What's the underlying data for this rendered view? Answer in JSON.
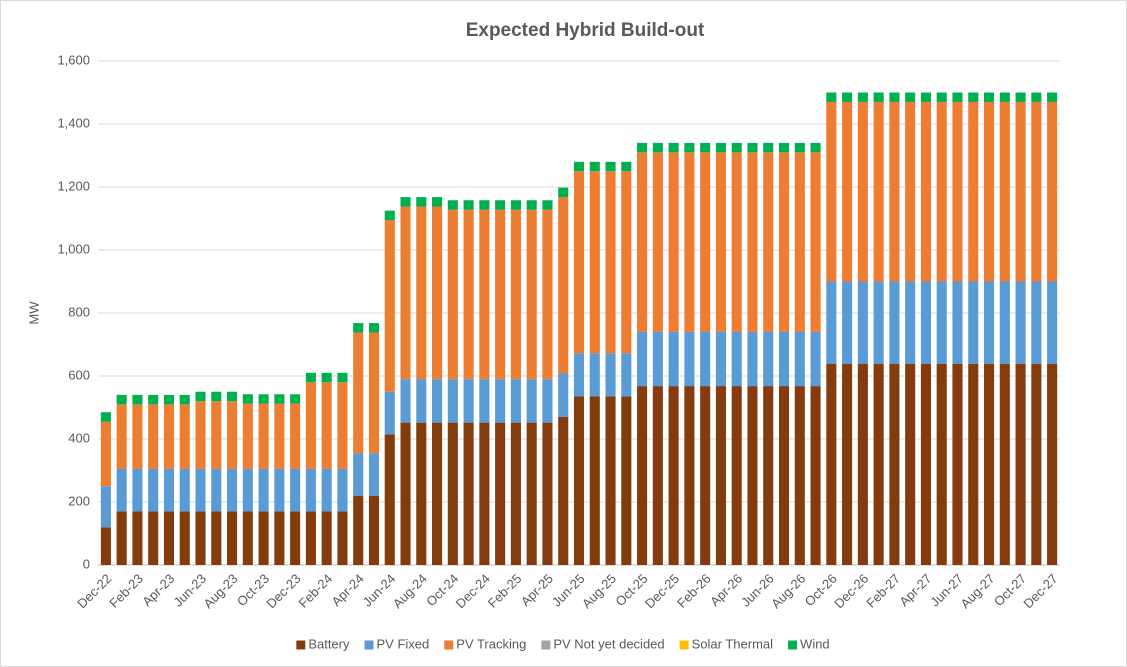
{
  "chart_data": {
    "type": "stacked-bar",
    "title": "Expected Hybrid Build-out",
    "y_label": "MW",
    "categories": [
      "Dec-22",
      null,
      "Feb-23",
      null,
      "Apr-23",
      null,
      "Jun-23",
      null,
      "Aug-23",
      null,
      "Oct-23",
      null,
      "Dec-23",
      null,
      "Feb-24",
      null,
      "Apr-24",
      null,
      "Jun-24",
      null,
      "Aug-24",
      null,
      "Oct-24",
      null,
      "Dec-24",
      null,
      "Feb-25",
      null,
      "Apr-25",
      null,
      "Jun-25",
      null,
      "Aug-25",
      null,
      "Oct-25",
      null,
      "Dec-25",
      null,
      "Feb-26",
      null,
      "Apr-26",
      null,
      "Jun-26",
      null,
      "Aug-26",
      null,
      "Oct-26",
      null,
      "Dec-26",
      null,
      "Feb-27",
      null,
      "Apr-27",
      null,
      "Jun-27",
      null,
      "Aug-27",
      null,
      "Oct-27",
      null,
      "Dec-27"
    ],
    "series": [
      {
        "name": "Battery",
        "color": "#843c0c",
        "values": [
          120,
          170,
          170,
          170,
          170,
          170,
          170,
          170,
          170,
          170,
          170,
          170,
          170,
          170,
          170,
          170,
          220,
          220,
          415,
          452,
          452,
          452,
          452,
          452,
          452,
          452,
          452,
          452,
          452,
          470,
          535,
          535,
          535,
          535,
          568,
          568,
          568,
          568,
          568,
          568,
          568,
          568,
          568,
          568,
          568,
          568,
          638,
          638,
          638,
          638,
          638,
          638,
          638,
          638,
          638,
          638,
          638,
          638,
          638,
          638,
          638
        ]
      },
      {
        "name": "PV Fixed",
        "color": "#5b9bd5",
        "values": [
          130,
          135,
          135,
          135,
          135,
          135,
          135,
          135,
          135,
          135,
          135,
          135,
          135,
          135,
          135,
          135,
          135,
          135,
          135,
          138,
          138,
          138,
          138,
          138,
          138,
          138,
          138,
          138,
          138,
          138,
          137,
          137,
          137,
          137,
          172,
          172,
          172,
          172,
          172,
          172,
          172,
          172,
          172,
          172,
          172,
          172,
          262,
          262,
          262,
          262,
          262,
          262,
          262,
          262,
          262,
          262,
          262,
          262,
          262,
          262,
          262
        ]
      },
      {
        "name": "PV Tracking",
        "color": "#ed7d31",
        "values": [
          205,
          205,
          205,
          205,
          205,
          205,
          215,
          215,
          215,
          207,
          207,
          207,
          207,
          275,
          275,
          275,
          383,
          383,
          545,
          548,
          548,
          548,
          538,
          538,
          538,
          538,
          538,
          538,
          538,
          560,
          578,
          578,
          578,
          578,
          570,
          570,
          570,
          570,
          570,
          570,
          570,
          570,
          570,
          570,
          570,
          570,
          570,
          570,
          570,
          570,
          570,
          570,
          570,
          570,
          570,
          570,
          570,
          570,
          570,
          570,
          570
        ]
      },
      {
        "name": "PV Not yet decided",
        "color": "#a5a5a5",
        "values": [
          0,
          0,
          0,
          0,
          0,
          0,
          0,
          0,
          0,
          0,
          0,
          0,
          0,
          0,
          0,
          0,
          0,
          0,
          0,
          0,
          0,
          0,
          0,
          0,
          0,
          0,
          0,
          0,
          0,
          0,
          0,
          0,
          0,
          0,
          0,
          0,
          0,
          0,
          0,
          0,
          0,
          0,
          0,
          0,
          0,
          0,
          0,
          0,
          0,
          0,
          0,
          0,
          0,
          0,
          0,
          0,
          0,
          0,
          0,
          0,
          0
        ]
      },
      {
        "name": "Solar Thermal",
        "color": "#ffc000",
        "values": [
          0,
          0,
          0,
          0,
          0,
          0,
          0,
          0,
          0,
          0,
          0,
          0,
          0,
          0,
          0,
          0,
          0,
          0,
          0,
          0,
          0,
          0,
          0,
          0,
          0,
          0,
          0,
          0,
          0,
          0,
          0,
          0,
          0,
          0,
          0,
          0,
          0,
          0,
          0,
          0,
          0,
          0,
          0,
          0,
          0,
          0,
          0,
          0,
          0,
          0,
          0,
          0,
          0,
          0,
          0,
          0,
          0,
          0,
          0,
          0,
          0
        ]
      },
      {
        "name": "Wind",
        "color": "#00b050",
        "values": [
          30,
          30,
          30,
          30,
          30,
          30,
          30,
          30,
          30,
          30,
          30,
          30,
          30,
          30,
          30,
          30,
          30,
          30,
          30,
          30,
          30,
          30,
          30,
          30,
          30,
          30,
          30,
          30,
          30,
          30,
          30,
          30,
          30,
          30,
          30,
          30,
          30,
          30,
          30,
          30,
          30,
          30,
          30,
          30,
          30,
          30,
          30,
          30,
          30,
          30,
          30,
          30,
          30,
          30,
          30,
          30,
          30,
          30,
          30,
          30,
          30
        ]
      }
    ],
    "ylim": [
      0,
      1600
    ],
    "yticks": [
      0,
      200,
      400,
      600,
      800,
      {
        "value": 1000,
        "label": "1,000"
      },
      {
        "value": 1200,
        "label": "1,200"
      },
      {
        "value": 1400,
        "label": "1,400"
      },
      {
        "value": 1600,
        "label": "1,600"
      }
    ],
    "grid": true,
    "legend": "bottom"
  }
}
